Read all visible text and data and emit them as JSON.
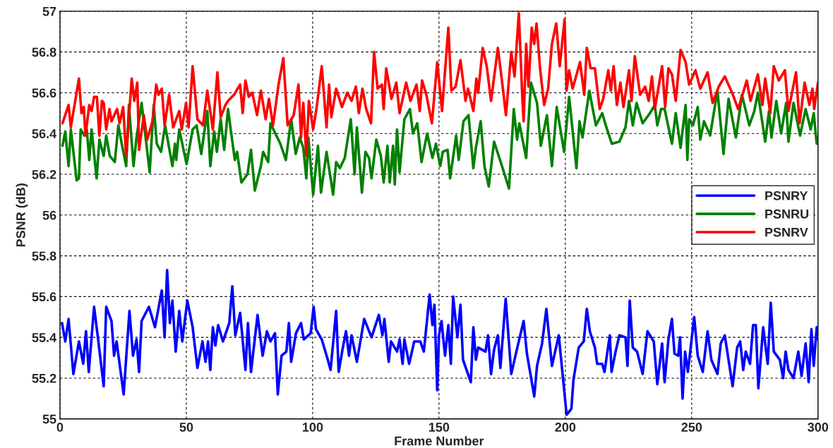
{
  "chart_data": {
    "type": "line",
    "xlabel": "Frame Number",
    "ylabel": "PSNR (dB)",
    "xlim": [
      0,
      300
    ],
    "xticks": [
      0,
      50,
      100,
      150,
      200,
      250,
      300
    ],
    "ylim": [
      55,
      57
    ],
    "yticks": [
      55,
      55.2,
      55.4,
      55.6,
      55.8,
      56,
      56.2,
      56.4,
      56.6,
      56.8,
      57
    ],
    "grid": true,
    "legend": "right",
    "line_style": "solid",
    "marker": "none",
    "series": [
      {
        "name": "PSNRY",
        "color": "#0000ff",
        "x": [
          0.8,
          2.1,
          3.4,
          5.3,
          7.5,
          9.2,
          10.3,
          11.4,
          13.5,
          15.2,
          17.3,
          18.3,
          20.4,
          21.4,
          22.4,
          25.2,
          27.5,
          28.9,
          30.3,
          31.3,
          32.3,
          35.2,
          37.6,
          40.3,
          41.4,
          42.4,
          43.5,
          44.5,
          45.8,
          47.2,
          48.4,
          50.4,
          52.5,
          54.4,
          56.4,
          57.6,
          58.6,
          59.5,
          60.5,
          61.5,
          62.6,
          64.5,
          67,
          68.2,
          69.4,
          71.3,
          73.4,
          74.4,
          75.6,
          78.2,
          80.2,
          81.9,
          83.3,
          85.1,
          86.2,
          87.7,
          89.6,
          90.6,
          91.5,
          93.4,
          95.4,
          96.5,
          99.2,
          100.4,
          101.3,
          103.6,
          106,
          107.1,
          109.3,
          110.3,
          111.8,
          113.2,
          114.4,
          115.4,
          117.5,
          120.4,
          123.3,
          126.2,
          127.6,
          128.4,
          130.1,
          131,
          133.4,
          134.4,
          135.6,
          136.3,
          138.2,
          140.2,
          142.6,
          144,
          146.3,
          147.4,
          148.2,
          149.3,
          150,
          151,
          152.4,
          153.7,
          154.7,
          155.6,
          157.3,
          158.5,
          159.5,
          162.6,
          163.6,
          164.6,
          165.5,
          168.4,
          169.4,
          170.6,
          171.8,
          173.3,
          174.3,
          176.4,
          178.6,
          181,
          183.5,
          184.8,
          187.7,
          188.8,
          190.8,
          192.5,
          194.7,
          197.4,
          200.5,
          202.4,
          203.2,
          205.3,
          207.3,
          208.5,
          209.7,
          211.7,
          212.6,
          214.6,
          215.5,
          217.6,
          218.3,
          219.9,
          221.4,
          223.8,
          224.6,
          225.5,
          226.7,
          228.4,
          230.6,
          232.5,
          235,
          236.4,
          238.3,
          239.3,
          240.8,
          242.2,
          243.2,
          244.7,
          245.4,
          246.4,
          247.4,
          248.5,
          251,
          252.4,
          254.4,
          256.3,
          257.8,
          260.2,
          261.5,
          263.1,
          266.2,
          268,
          269.2,
          270.4,
          271.4,
          273.1,
          274.3,
          275.4,
          276.4,
          278.3,
          280.1,
          281.3,
          282.5,
          284.9,
          286.2,
          287.2,
          288.3,
          290.3,
          292.2,
          293.5,
          295.1,
          296.3,
          297.4,
          298.3,
          299.5,
          300
        ],
        "values": [
          55.47,
          55.38,
          55.49,
          55.22,
          55.38,
          55.27,
          55.43,
          55.23,
          55.55,
          55.38,
          55.16,
          55.55,
          55.48,
          55.31,
          55.38,
          55.12,
          55.53,
          55.31,
          55.39,
          55.23,
          55.48,
          55.55,
          55.45,
          55.63,
          55.4,
          55.73,
          55.47,
          55.58,
          55.33,
          55.53,
          55.38,
          55.58,
          55.45,
          55.25,
          55.38,
          55.28,
          55.38,
          55.24,
          55.45,
          55.36,
          55.46,
          55.38,
          55.47,
          55.65,
          55.41,
          55.52,
          55.24,
          55.47,
          55.23,
          55.51,
          55.31,
          55.43,
          55.38,
          55.42,
          55.12,
          55.31,
          55.33,
          55.47,
          55.28,
          55.42,
          55.47,
          55.39,
          55.42,
          55.55,
          55.44,
          55.39,
          55.29,
          55.24,
          55.53,
          55.23,
          55.34,
          55.43,
          55.31,
          55.41,
          55.28,
          55.49,
          55.4,
          55.51,
          55.41,
          55.49,
          55.28,
          55.38,
          55.33,
          55.39,
          55.27,
          55.39,
          55.27,
          55.38,
          55.38,
          55.33,
          55.61,
          55.46,
          55.56,
          55.14,
          55.41,
          55.48,
          55.31,
          55.46,
          55.27,
          55.6,
          55.4,
          55.56,
          55.29,
          55.18,
          55.45,
          55.29,
          55.35,
          55.33,
          55.41,
          55.22,
          55.34,
          55.41,
          55.25,
          55.59,
          55.22,
          55.35,
          55.48,
          55.32,
          55.11,
          55.26,
          55.37,
          55.54,
          55.26,
          55.41,
          55.02,
          55.05,
          55.19,
          55.35,
          55.38,
          55.54,
          55.43,
          55.35,
          55.27,
          55.27,
          55.23,
          55.41,
          55.23,
          55.33,
          55.41,
          55.4,
          55.26,
          55.58,
          55.35,
          55.33,
          55.22,
          55.43,
          55.38,
          55.17,
          55.37,
          55.18,
          55.39,
          55.49,
          55.32,
          55.31,
          55.4,
          55.1,
          55.33,
          55.23,
          55.5,
          55.31,
          55.23,
          55.43,
          55.29,
          55.22,
          55.37,
          55.41,
          55.16,
          55.35,
          55.38,
          55.24,
          55.33,
          55.27,
          55.46,
          55.46,
          55.15,
          55.45,
          55.27,
          55.57,
          55.33,
          55.29,
          55.2,
          55.33,
          55.24,
          55.2,
          55.33,
          55.21,
          55.37,
          55.18,
          55.44,
          55.26,
          55.45,
          55.39
        ]
      },
      {
        "name": "PSNRU",
        "color": "#008000",
        "x": [
          1,
          2.1,
          3.4,
          4.3,
          6.6,
          7.5,
          8.2,
          9.6,
          10.6,
          11.6,
          12.5,
          14.5,
          15.6,
          17.3,
          18.3,
          19.7,
          21.7,
          23.1,
          24.6,
          26.2,
          27.3,
          29.1,
          30.3,
          32.3,
          35.5,
          37.1,
          38.3,
          40,
          41.6,
          44.5,
          45.5,
          46,
          47.2,
          50.1,
          52.5,
          54.1,
          55.9,
          58.3,
          59.5,
          61,
          62.1,
          63.6,
          65,
          66.5,
          69.2,
          70.1,
          71.8,
          74.2,
          75.6,
          77.1,
          79.5,
          80.4,
          82.4,
          83.3,
          87.2,
          89.4,
          91.5,
          93.3,
          94.9,
          96.3,
          97.5,
          98.3,
          100.2,
          102.1,
          103.3,
          105.5,
          108.1,
          109.3,
          110.8,
          112.7,
          115.1,
          116.6,
          117.5,
          119.5,
          120.9,
          122.3,
          123.3,
          125.2,
          127,
          128.1,
          129.6,
          130.5,
          131.8,
          132.5,
          133.4,
          134.4,
          136.3,
          138.5,
          139.7,
          141.4,
          143.1,
          145.3,
          147.4,
          148.8,
          150.5,
          151.5,
          153.4,
          154.4,
          156.8,
          157.8,
          159.7,
          161.7,
          163.6,
          164.6,
          166.5,
          168,
          169.7,
          171.8,
          175.2,
          177.7,
          179.6,
          180.9,
          181.8,
          184.5,
          186.4,
          188.8,
          190.3,
          192.7,
          194.7,
          196.6,
          199.5,
          201.5,
          204.4,
          205.6,
          206.8,
          209.5,
          212.1,
          214.6,
          216,
          218.4,
          221.4,
          223.8,
          225.2,
          226.7,
          228.2,
          230.6,
          233.5,
          235.4,
          236.4,
          237.9,
          239.3,
          242.2,
          243.7,
          245.6,
          247.6,
          248.3,
          249,
          250.5,
          252.4,
          253.4,
          254.9,
          257.3,
          260.2,
          262.6,
          264.6,
          267.5,
          269.9,
          272.8,
          274.8,
          276.2,
          279.1,
          280.6,
          281.6,
          283.5,
          285.4,
          287.4,
          288.3,
          290.3,
          292.9,
          295.1,
          297.1,
          298.3,
          299.5,
          300
        ],
        "values": [
          56.34,
          56.41,
          56.24,
          56.42,
          56.17,
          56.18,
          56.42,
          56.39,
          56.42,
          56.27,
          56.42,
          56.18,
          56.37,
          56.29,
          56.39,
          56.29,
          56.26,
          56.44,
          56.34,
          56.24,
          56.54,
          56.24,
          56.38,
          56.55,
          56.21,
          56.54,
          56.35,
          56.31,
          56.44,
          56.24,
          56.35,
          56.27,
          56.42,
          56.25,
          56.42,
          56.44,
          56.3,
          56.51,
          56.24,
          56.41,
          56.31,
          56.47,
          56.32,
          56.52,
          56.27,
          56.31,
          56.16,
          56.2,
          56.32,
          56.12,
          56.24,
          56.31,
          56.26,
          56.45,
          56.35,
          56.27,
          56.47,
          56.3,
          56.38,
          56.33,
          56.18,
          56.38,
          56.1,
          56.34,
          56.11,
          56.31,
          56.1,
          56.26,
          56.23,
          56.28,
          56.47,
          56.2,
          56.43,
          56.11,
          56.31,
          56.28,
          56.18,
          56.37,
          56.29,
          56.16,
          56.34,
          56.16,
          56.34,
          56.15,
          56.42,
          56.21,
          56.47,
          56.52,
          56.4,
          56.45,
          56.26,
          56.4,
          56.28,
          56.35,
          56.24,
          56.31,
          56.32,
          56.18,
          56.39,
          56.27,
          56.46,
          56.49,
          56.23,
          56.33,
          56.46,
          56.24,
          56.14,
          56.36,
          56.23,
          56.13,
          56.52,
          56.37,
          56.45,
          56.28,
          56.65,
          56.55,
          56.34,
          56.49,
          56.24,
          56.53,
          56.31,
          56.58,
          56.23,
          56.46,
          56.38,
          56.61,
          56.44,
          56.5,
          56.44,
          56.35,
          56.36,
          56.43,
          56.56,
          56.44,
          56.55,
          56.45,
          56.5,
          56.54,
          56.44,
          56.52,
          56.52,
          56.35,
          56.5,
          56.33,
          56.54,
          56.27,
          56.47,
          56.44,
          56.53,
          56.37,
          56.46,
          56.39,
          56.61,
          56.3,
          56.57,
          56.38,
          56.59,
          56.44,
          56.51,
          56.6,
          56.36,
          56.51,
          56.38,
          56.56,
          56.4,
          56.55,
          56.36,
          56.55,
          56.39,
          56.52,
          56.42,
          56.5,
          56.35,
          56.38
        ]
      },
      {
        "name": "PSNRV",
        "color": "#ff0000",
        "x": [
          1,
          3.4,
          4.3,
          7.5,
          8.5,
          9.4,
          10.1,
          11.6,
          12.5,
          13.5,
          14.6,
          15.6,
          16.6,
          17.3,
          18.3,
          19.6,
          20.4,
          22.6,
          23.6,
          25,
          26.2,
          28.4,
          29.4,
          30.6,
          31.3,
          33.2,
          34.5,
          36.6,
          38.1,
          39,
          40.3,
          41.4,
          43.2,
          44.8,
          47.2,
          48.2,
          49.9,
          50.9,
          52.5,
          54.4,
          56.6,
          58.3,
          60.5,
          62.3,
          63.6,
          65.5,
          66.5,
          68.9,
          71.3,
          72.3,
          73.4,
          74.7,
          76.1,
          78,
          79.5,
          81.4,
          82.7,
          84.3,
          86.5,
          88.4,
          90.1,
          92.5,
          94.4,
          95.4,
          96.3,
          97.5,
          98.5,
          100.2,
          101.6,
          103.6,
          105.5,
          106.5,
          107.4,
          109.3,
          111.6,
          113.7,
          115.4,
          117.1,
          118.3,
          119.7,
          121.2,
          123.1,
          124.3,
          125.7,
          127.4,
          128.1,
          129.1,
          131.2,
          133.1,
          134.4,
          137,
          138.7,
          141.1,
          142.4,
          143.3,
          145,
          147.2,
          149.3,
          151.2,
          153.7,
          154.9,
          156.6,
          158.5,
          160.5,
          161.5,
          163.6,
          164.8,
          165.5,
          167.3,
          168.9,
          170.6,
          173.3,
          175,
          176.5,
          178.6,
          179.9,
          181.6,
          183,
          183.5,
          184.5,
          185.4,
          186.7,
          187.7,
          188.6,
          190,
          191.6,
          193.2,
          194.7,
          196.4,
          197.8,
          199.7,
          200.5,
          201.5,
          202.9,
          205.8,
          207.5,
          208.5,
          210,
          211.7,
          213.6,
          215,
          217,
          218,
          219.1,
          220.4,
          221.8,
          223,
          225.2,
          226.2,
          227.5,
          229.6,
          231.6,
          233,
          234.3,
          235.4,
          238.3,
          239.5,
          240.8,
          242.2,
          243.7,
          245.6,
          247.6,
          249,
          251.5,
          253.4,
          256.3,
          258.3,
          260.7,
          263.1,
          266,
          268.4,
          271.8,
          273.3,
          276.2,
          278,
          279.1,
          281.1,
          282.5,
          284.5,
          286.9,
          288.3,
          291.3,
          292.7,
          294.7,
          296.6,
          297.8,
          298.5,
          300
        ],
        "values": [
          56.45,
          56.54,
          56.43,
          56.67,
          56.5,
          56.53,
          56.39,
          56.54,
          56.51,
          56.58,
          56.58,
          56.39,
          56.56,
          56.55,
          56.42,
          56.52,
          56.46,
          56.52,
          56.45,
          56.53,
          56.29,
          56.67,
          56.56,
          56.65,
          56.32,
          56.49,
          56.37,
          56.46,
          56.64,
          56.59,
          56.62,
          56.44,
          56.59,
          56.43,
          56.51,
          56.42,
          56.55,
          56.43,
          56.73,
          56.47,
          56.44,
          56.61,
          56.42,
          56.7,
          56.48,
          56.54,
          56.56,
          56.59,
          56.64,
          56.5,
          56.66,
          56.58,
          56.6,
          56.49,
          56.61,
          56.47,
          56.57,
          56.44,
          56.64,
          56.77,
          56.44,
          56.49,
          56.64,
          56.38,
          56.55,
          56.29,
          56.56,
          56.42,
          56.53,
          56.73,
          56.43,
          56.64,
          56.48,
          56.62,
          56.53,
          56.6,
          56.56,
          56.63,
          56.5,
          56.62,
          56.52,
          56.45,
          56.8,
          56.62,
          56.64,
          56.52,
          56.72,
          56.57,
          56.65,
          56.5,
          56.65,
          56.56,
          56.64,
          56.51,
          56.66,
          56.59,
          56.45,
          56.75,
          56.51,
          56.92,
          56.61,
          56.63,
          56.76,
          56.56,
          56.62,
          56.51,
          56.67,
          56.6,
          56.82,
          56.73,
          56.56,
          56.82,
          56.65,
          56.49,
          56.8,
          56.68,
          56.99,
          56.57,
          56.46,
          56.84,
          56.63,
          56.92,
          56.84,
          56.94,
          56.72,
          56.54,
          56.62,
          56.84,
          56.94,
          56.73,
          56.96,
          56.61,
          56.71,
          56.62,
          56.75,
          56.59,
          56.82,
          56.72,
          56.72,
          56.52,
          56.57,
          56.71,
          56.61,
          56.73,
          56.54,
          56.65,
          56.53,
          56.71,
          56.56,
          56.78,
          56.59,
          56.63,
          56.56,
          56.68,
          56.52,
          56.73,
          56.53,
          56.72,
          56.69,
          56.56,
          56.81,
          56.75,
          56.64,
          56.71,
          56.62,
          56.7,
          56.55,
          56.63,
          56.68,
          56.6,
          56.52,
          56.66,
          56.56,
          56.69,
          56.54,
          56.67,
          56.5,
          56.73,
          56.66,
          56.71,
          56.51,
          56.7,
          56.45,
          56.65,
          56.54,
          56.62,
          56.52,
          56.65
        ]
      }
    ]
  }
}
